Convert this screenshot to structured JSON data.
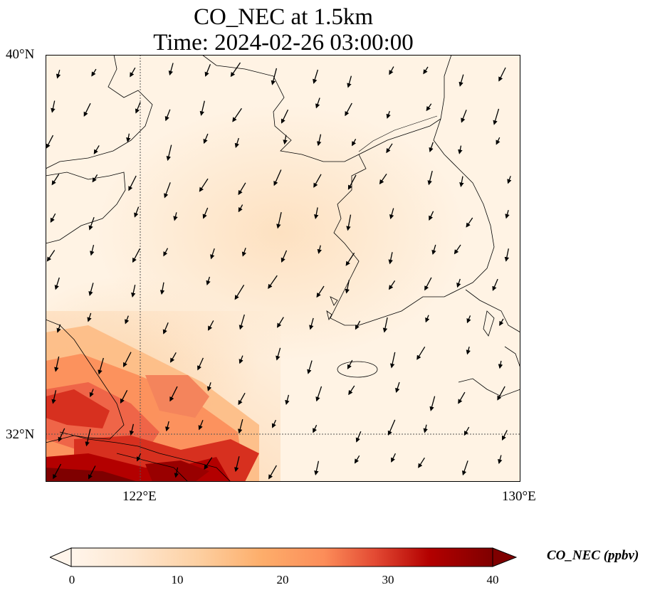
{
  "title": {
    "line1": "CO_NEC at 1.5km",
    "line2": "Time: 2024-02-26 03:00:00"
  },
  "axes": {
    "lat_labels": [
      "40°N",
      "32°N"
    ],
    "lon_labels": [
      "122°E",
      "130°E"
    ]
  },
  "colorbar": {
    "label": "CO_NEC (ppbv)",
    "ticks": [
      "0",
      "10",
      "20",
      "30",
      "40"
    ],
    "min": 0,
    "max": 40,
    "extend": "both",
    "colormap": [
      "#fff5eb",
      "#fee6ce",
      "#fdd0a2",
      "#fdae6b",
      "#fd8d3c",
      "#f16913",
      "#d94801",
      "#a63603",
      "#7f0000"
    ]
  },
  "map": {
    "lon_range": [
      120,
      130
    ],
    "lat_range": [
      31,
      40
    ],
    "gridlines": {
      "lon": [
        122
      ],
      "lat": [
        32
      ]
    },
    "field_colors": {
      "background": "#fff1e0",
      "inland": "#fde4c8",
      "high": "#e34a33",
      "very_high": "#a50f15"
    },
    "wind_vectors": "black arrows pointing south-southwest"
  }
}
